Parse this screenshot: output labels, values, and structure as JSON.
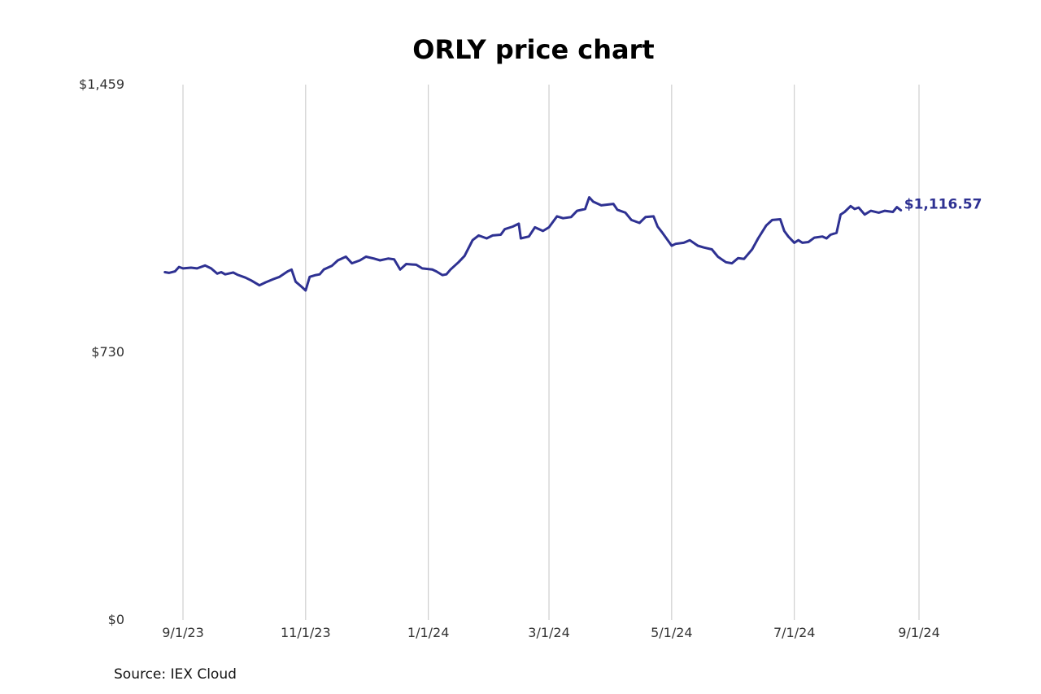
{
  "chart_data": {
    "type": "line",
    "title": "ORLY price chart",
    "source": "Source: IEX Cloud",
    "ylim": [
      0,
      1459
    ],
    "y_ticks": [
      {
        "value": 0,
        "label": "$0"
      },
      {
        "value": 730,
        "label": "$730"
      },
      {
        "value": 1459,
        "label": "$1,459"
      }
    ],
    "x_ticks": [
      {
        "date": "2023-09-01",
        "label": "9/1/23"
      },
      {
        "date": "2023-11-01",
        "label": "11/1/23"
      },
      {
        "date": "2024-01-01",
        "label": "1/1/24"
      },
      {
        "date": "2024-03-01",
        "label": "3/1/24"
      },
      {
        "date": "2024-05-01",
        "label": "5/1/24"
      },
      {
        "date": "2024-07-01",
        "label": "7/1/24"
      },
      {
        "date": "2024-09-01",
        "label": "9/1/24"
      }
    ],
    "grid": "vertical",
    "last_value_label": "$1,116.57",
    "series_color": "#2e3192",
    "series": [
      {
        "points": [
          [
            "2023-08-23",
            948
          ],
          [
            "2023-08-25",
            946
          ],
          [
            "2023-08-28",
            950
          ],
          [
            "2023-08-30",
            962
          ],
          [
            "2023-09-01",
            958
          ],
          [
            "2023-09-05",
            960
          ],
          [
            "2023-09-08",
            958
          ],
          [
            "2023-09-12",
            966
          ],
          [
            "2023-09-15",
            958
          ],
          [
            "2023-09-18",
            944
          ],
          [
            "2023-09-20",
            948
          ],
          [
            "2023-09-22",
            942
          ],
          [
            "2023-09-26",
            947
          ],
          [
            "2023-09-28",
            941
          ],
          [
            "2023-10-02",
            933
          ],
          [
            "2023-10-05",
            925
          ],
          [
            "2023-10-09",
            912
          ],
          [
            "2023-10-12",
            920
          ],
          [
            "2023-10-16",
            929
          ],
          [
            "2023-10-19",
            935
          ],
          [
            "2023-10-23",
            950
          ],
          [
            "2023-10-25",
            955
          ],
          [
            "2023-10-27",
            922
          ],
          [
            "2023-10-30",
            908
          ],
          [
            "2023-11-01",
            898
          ],
          [
            "2023-11-03",
            935
          ],
          [
            "2023-11-06",
            940
          ],
          [
            "2023-11-08",
            942
          ],
          [
            "2023-11-10",
            955
          ],
          [
            "2023-11-14",
            965
          ],
          [
            "2023-11-17",
            980
          ],
          [
            "2023-11-21",
            990
          ],
          [
            "2023-11-24",
            972
          ],
          [
            "2023-11-28",
            980
          ],
          [
            "2023-12-01",
            990
          ],
          [
            "2023-12-05",
            985
          ],
          [
            "2023-12-08",
            980
          ],
          [
            "2023-12-12",
            985
          ],
          [
            "2023-12-15",
            983
          ],
          [
            "2023-12-18",
            955
          ],
          [
            "2023-12-21",
            970
          ],
          [
            "2023-12-26",
            968
          ],
          [
            "2023-12-29",
            958
          ],
          [
            "2024-01-03",
            955
          ],
          [
            "2024-01-05",
            950
          ],
          [
            "2024-01-08",
            940
          ],
          [
            "2024-01-10",
            942
          ],
          [
            "2024-01-12",
            955
          ],
          [
            "2024-01-16",
            975
          ],
          [
            "2024-01-19",
            992
          ],
          [
            "2024-01-23",
            1035
          ],
          [
            "2024-01-26",
            1048
          ],
          [
            "2024-01-30",
            1040
          ],
          [
            "2024-02-02",
            1048
          ],
          [
            "2024-02-06",
            1050
          ],
          [
            "2024-02-08",
            1065
          ],
          [
            "2024-02-12",
            1072
          ],
          [
            "2024-02-15",
            1080
          ],
          [
            "2024-02-16",
            1040
          ],
          [
            "2024-02-20",
            1045
          ],
          [
            "2024-02-23",
            1070
          ],
          [
            "2024-02-27",
            1060
          ],
          [
            "2024-03-01",
            1070
          ],
          [
            "2024-03-05",
            1100
          ],
          [
            "2024-03-08",
            1095
          ],
          [
            "2024-03-12",
            1098
          ],
          [
            "2024-03-15",
            1115
          ],
          [
            "2024-03-19",
            1120
          ],
          [
            "2024-03-21",
            1152
          ],
          [
            "2024-03-23",
            1140
          ],
          [
            "2024-03-27",
            1130
          ],
          [
            "2024-03-30",
            1132
          ],
          [
            "2024-04-02",
            1134
          ],
          [
            "2024-04-04",
            1118
          ],
          [
            "2024-04-08",
            1110
          ],
          [
            "2024-04-11",
            1090
          ],
          [
            "2024-04-15",
            1082
          ],
          [
            "2024-04-18",
            1098
          ],
          [
            "2024-04-22",
            1100
          ],
          [
            "2024-04-24",
            1072
          ],
          [
            "2024-04-26",
            1058
          ],
          [
            "2024-05-01",
            1020
          ],
          [
            "2024-05-03",
            1025
          ],
          [
            "2024-05-07",
            1028
          ],
          [
            "2024-05-10",
            1035
          ],
          [
            "2024-05-14",
            1020
          ],
          [
            "2024-05-17",
            1015
          ],
          [
            "2024-05-21",
            1010
          ],
          [
            "2024-05-24",
            990
          ],
          [
            "2024-05-28",
            975
          ],
          [
            "2024-05-31",
            972
          ],
          [
            "2024-06-03",
            986
          ],
          [
            "2024-06-06",
            984
          ],
          [
            "2024-06-10",
            1010
          ],
          [
            "2024-06-13",
            1040
          ],
          [
            "2024-06-17",
            1075
          ],
          [
            "2024-06-20",
            1090
          ],
          [
            "2024-06-24",
            1092
          ],
          [
            "2024-06-26",
            1060
          ],
          [
            "2024-06-28",
            1045
          ],
          [
            "2024-07-01",
            1028
          ],
          [
            "2024-07-03",
            1035
          ],
          [
            "2024-07-05",
            1028
          ],
          [
            "2024-07-08",
            1030
          ],
          [
            "2024-07-11",
            1042
          ],
          [
            "2024-07-15",
            1045
          ],
          [
            "2024-07-17",
            1040
          ],
          [
            "2024-07-19",
            1050
          ],
          [
            "2024-07-22",
            1055
          ],
          [
            "2024-07-24",
            1105
          ],
          [
            "2024-07-26",
            1112
          ],
          [
            "2024-07-29",
            1128
          ],
          [
            "2024-07-31",
            1120
          ],
          [
            "2024-08-02",
            1124
          ],
          [
            "2024-08-05",
            1105
          ],
          [
            "2024-08-08",
            1115
          ],
          [
            "2024-08-12",
            1110
          ],
          [
            "2024-08-15",
            1115
          ],
          [
            "2024-08-19",
            1112
          ],
          [
            "2024-08-21",
            1125
          ],
          [
            "2024-08-23",
            1116.57
          ]
        ]
      }
    ]
  }
}
